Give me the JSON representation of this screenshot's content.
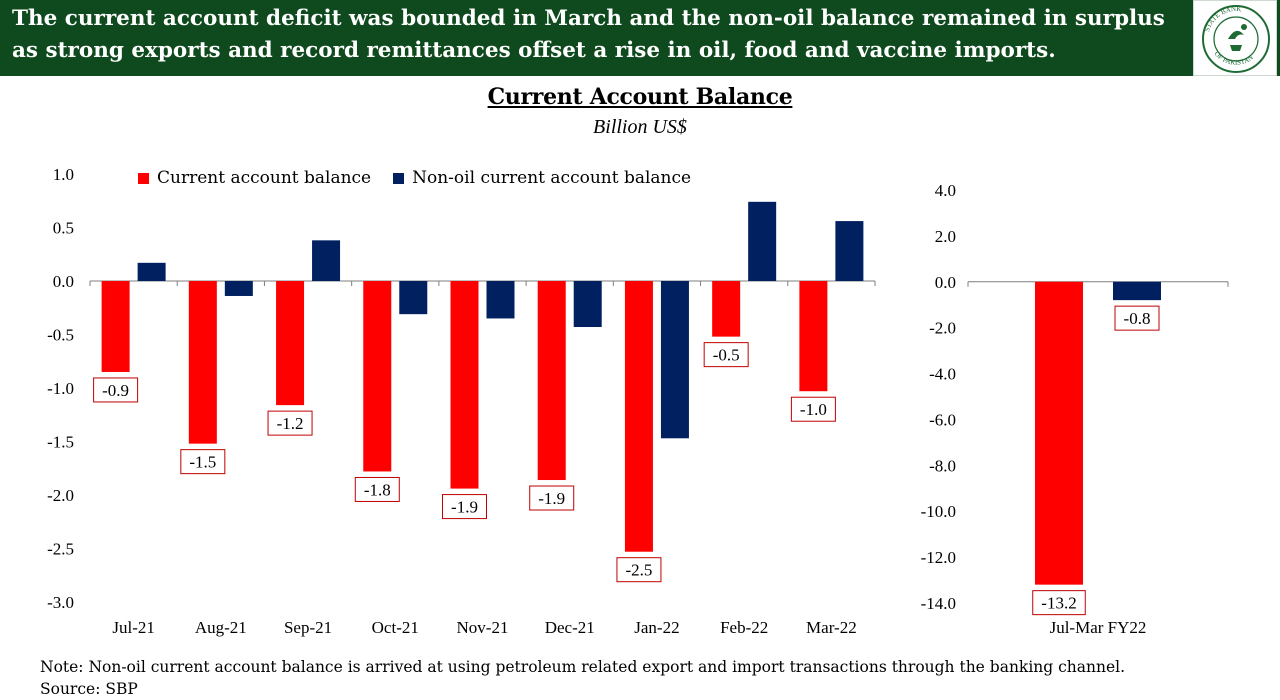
{
  "header": {
    "headline": "The current account deficit was bounded in March and the non-oil balance remained in surplus as strong exports and record remittances offset a rise in oil, food and vaccine imports.",
    "logo_text": "STATE BANK OF PAKISTAN"
  },
  "title": "Current Account Balance",
  "subtitle": "Billion US$",
  "colors": {
    "current": "#ff0000",
    "nonoil": "#002060",
    "banner": "#0f4a1e",
    "label_border": "#c00000"
  },
  "legend": [
    {
      "name": "Current account balance",
      "color": "#ff0000"
    },
    {
      "name": "Non-oil current account balance",
      "color": "#002060"
    }
  ],
  "chart_data": [
    {
      "type": "bar",
      "categories": [
        "Jul-21",
        "Aug-21",
        "Sep-21",
        "Oct-21",
        "Nov-21",
        "Dec-21",
        "Jan-22",
        "Feb-22",
        "Mar-22"
      ],
      "series": [
        {
          "name": "Current account balance",
          "values": [
            -0.85,
            -1.52,
            -1.16,
            -1.78,
            -1.94,
            -1.86,
            -2.53,
            -0.52,
            -1.03
          ],
          "labels": [
            "-0.9",
            "-1.5",
            "-1.2",
            "-1.8",
            "-1.9",
            "-1.9",
            "-2.5",
            "-0.5",
            "-1.0"
          ]
        },
        {
          "name": "Non-oil current account balance",
          "values": [
            0.17,
            -0.14,
            0.38,
            -0.31,
            -0.35,
            -0.43,
            -1.47,
            0.74,
            0.56
          ]
        }
      ],
      "ylim": [
        -3.0,
        1.0
      ],
      "yticks": [
        "1.0",
        "0.5",
        "0.0",
        "-0.5",
        "-1.0",
        "-1.5",
        "-2.0",
        "-2.5",
        "-3.0"
      ],
      "legend_position": "top"
    },
    {
      "type": "bar",
      "categories": [
        "Jul-Mar FY22"
      ],
      "series": [
        {
          "name": "Current account balance",
          "values": [
            -13.2
          ],
          "labels": [
            "-13.2"
          ]
        },
        {
          "name": "Non-oil current account balance",
          "values": [
            -0.8
          ],
          "labels": [
            "-0.8"
          ]
        }
      ],
      "ylim": [
        -14.0,
        4.0
      ],
      "yticks": [
        "4.0",
        "2.0",
        "0.0",
        "-2.0",
        "-4.0",
        "-6.0",
        "-8.0",
        "-10.0",
        "-12.0",
        "-14.0"
      ]
    }
  ],
  "footer": {
    "note": "Note: Non-oil current account balance is arrived at using petroleum related export and import transactions through the banking channel.",
    "source": "Source: SBP"
  }
}
